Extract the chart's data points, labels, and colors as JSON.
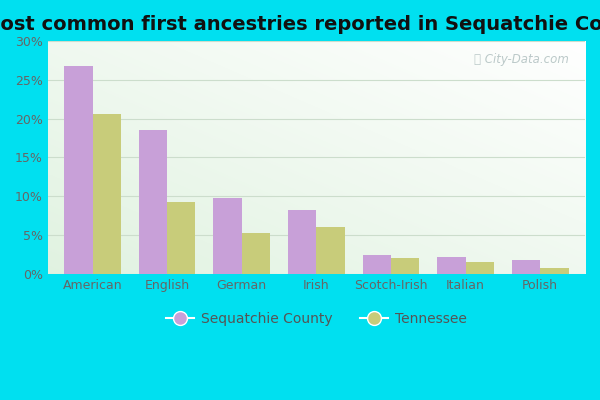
{
  "title": "Most common first ancestries reported in Sequatchie County",
  "categories": [
    "American",
    "English",
    "German",
    "Irish",
    "Scotch-Irish",
    "Italian",
    "Polish"
  ],
  "sequatchie_values": [
    26.8,
    18.5,
    9.8,
    8.2,
    2.4,
    2.1,
    1.8
  ],
  "tennessee_values": [
    20.6,
    9.3,
    5.2,
    6.0,
    2.0,
    1.5,
    0.7
  ],
  "sequatchie_color": "#c8a0d8",
  "tennessee_color": "#c8cc7a",
  "bar_width": 0.38,
  "ylim": [
    0,
    30
  ],
  "yticks": [
    0,
    5,
    10,
    15,
    20,
    25,
    30
  ],
  "ytick_labels": [
    "0%",
    "5%",
    "10%",
    "15%",
    "20%",
    "25%",
    "30%"
  ],
  "legend_label_sequatchie": "Sequatchie County",
  "legend_label_tennessee": "Tennessee",
  "background_outer": "#00e0f0",
  "grid_color": "#d8e8d8",
  "title_fontsize": 14,
  "tick_fontsize": 9,
  "legend_fontsize": 10
}
